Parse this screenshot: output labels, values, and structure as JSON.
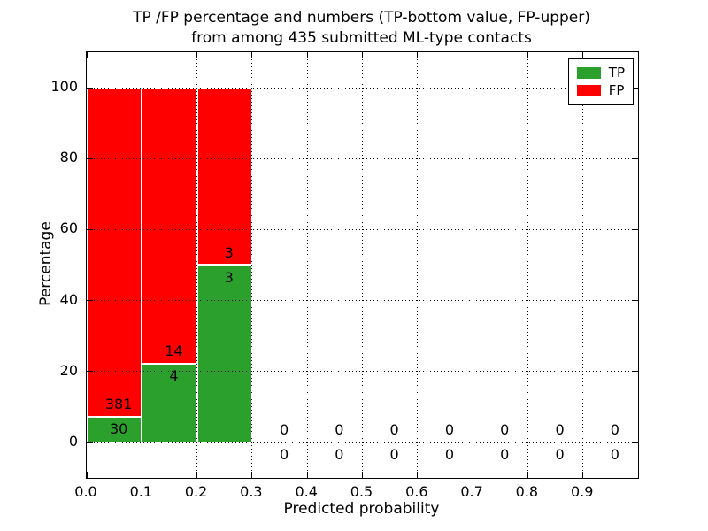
{
  "title": {
    "line1": "TP /FP percentage and numbers (TP-bottom value, FP-upper)",
    "line2": "from among 435 submitted ML-type contacts"
  },
  "axes": {
    "xlabel": "Predicted probability",
    "ylabel": "Percentage"
  },
  "legend": {
    "position": "upper right",
    "entries": [
      {
        "label": "TP",
        "color": "#2ca02c"
      },
      {
        "label": "FP",
        "color": "#ff0000"
      }
    ]
  },
  "chart_data": {
    "type": "bar",
    "stacked": true,
    "title": "TP /FP percentage and numbers (TP-bottom value, FP-upper) from among 435 submitted ML-type contacts",
    "xlabel": "Predicted probability",
    "ylabel": "Percentage",
    "xlim": [
      0.0,
      1.0
    ],
    "ylim": [
      -10,
      110
    ],
    "xticks": [
      {
        "v": 0.0,
        "label": "0.0"
      },
      {
        "v": 0.1,
        "label": "0.1"
      },
      {
        "v": 0.2,
        "label": "0.2"
      },
      {
        "v": 0.3,
        "label": "0.3"
      },
      {
        "v": 0.4,
        "label": "0.4"
      },
      {
        "v": 0.5,
        "label": "0.5"
      },
      {
        "v": 0.6,
        "label": "0.6"
      },
      {
        "v": 0.7,
        "label": "0.7"
      },
      {
        "v": 0.8,
        "label": "0.8"
      },
      {
        "v": 0.9,
        "label": "0.9"
      }
    ],
    "yticks": [
      0,
      20,
      40,
      60,
      80,
      100
    ],
    "grid": "dotted black, drawn above bars",
    "legend_position": "upper right",
    "total_contacts": 435,
    "bin_width": 0.1,
    "annotation_note": "each bin labeled with FP count above segment boundary and TP count below it",
    "bins": [
      {
        "range": [
          0.0,
          0.1
        ],
        "tp": 30,
        "fp": 381,
        "tp_pct": 7.3,
        "fp_pct": 92.7
      },
      {
        "range": [
          0.1,
          0.2
        ],
        "tp": 4,
        "fp": 14,
        "tp_pct": 22.2,
        "fp_pct": 77.8
      },
      {
        "range": [
          0.2,
          0.3
        ],
        "tp": 3,
        "fp": 3,
        "tp_pct": 50.0,
        "fp_pct": 50.0
      },
      {
        "range": [
          0.3,
          0.4
        ],
        "tp": 0,
        "fp": 0,
        "tp_pct": 0,
        "fp_pct": 0
      },
      {
        "range": [
          0.4,
          0.5
        ],
        "tp": 0,
        "fp": 0,
        "tp_pct": 0,
        "fp_pct": 0
      },
      {
        "range": [
          0.5,
          0.6
        ],
        "tp": 0,
        "fp": 0,
        "tp_pct": 0,
        "fp_pct": 0
      },
      {
        "range": [
          0.6,
          0.7
        ],
        "tp": 0,
        "fp": 0,
        "tp_pct": 0,
        "fp_pct": 0
      },
      {
        "range": [
          0.7,
          0.8
        ],
        "tp": 0,
        "fp": 0,
        "tp_pct": 0,
        "fp_pct": 0
      },
      {
        "range": [
          0.8,
          0.9
        ],
        "tp": 0,
        "fp": 0,
        "tp_pct": 0,
        "fp_pct": 0
      },
      {
        "range": [
          0.9,
          1.0
        ],
        "tp": 0,
        "fp": 0,
        "tp_pct": 0,
        "fp_pct": 0
      }
    ],
    "series": [
      {
        "name": "TP",
        "color": "#2ca02c",
        "counts": [
          30,
          4,
          3,
          0,
          0,
          0,
          0,
          0,
          0,
          0
        ]
      },
      {
        "name": "FP",
        "color": "#ff0000",
        "counts": [
          381,
          14,
          3,
          0,
          0,
          0,
          0,
          0,
          0,
          0
        ]
      }
    ]
  }
}
